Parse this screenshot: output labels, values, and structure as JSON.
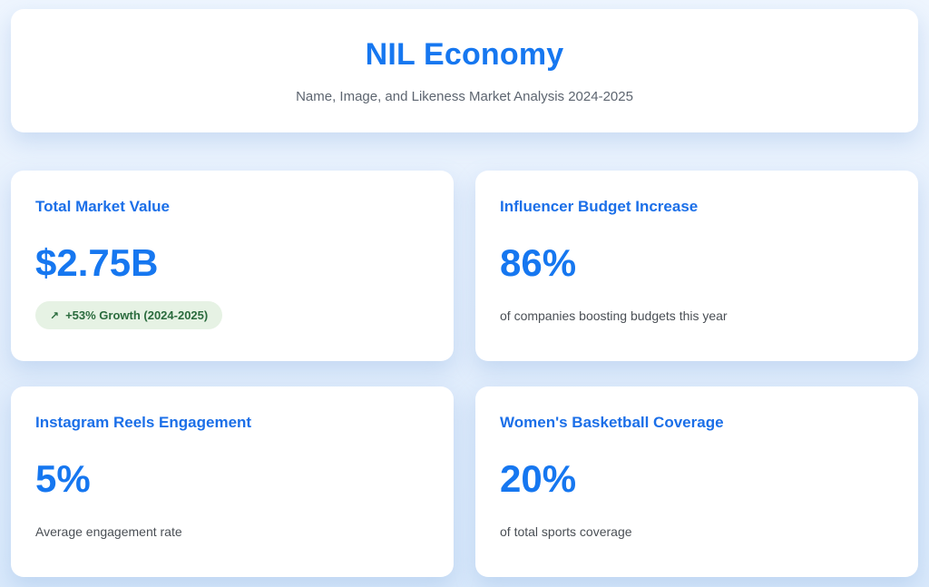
{
  "theme": {
    "background_top": "#eef5fe",
    "background_bottom": "#d9e9fb",
    "card_background": "#ffffff",
    "accent_blue": "#1677f0",
    "card_title_blue": "#1b6fe8",
    "subtitle_gray": "#5d6570",
    "description_gray": "#4a4f55",
    "badge_background": "#e6f2e4",
    "badge_text": "#2a6b3d"
  },
  "header": {
    "title": "NIL Economy",
    "subtitle": "Name, Image, and Likeness Market Analysis 2024-2025"
  },
  "cards": [
    {
      "title": "Total Market Value",
      "value": "$2.75B",
      "badge": {
        "icon": "↗",
        "label": "+53% Growth (2024-2025)"
      }
    },
    {
      "title": "Influencer Budget Increase",
      "value": "86%",
      "description": "of companies boosting budgets this year"
    },
    {
      "title": "Instagram Reels Engagement",
      "value": "5%",
      "description": "Average engagement rate"
    },
    {
      "title": "Women's Basketball Coverage",
      "value": "20%",
      "description": "of total sports coverage"
    }
  ]
}
